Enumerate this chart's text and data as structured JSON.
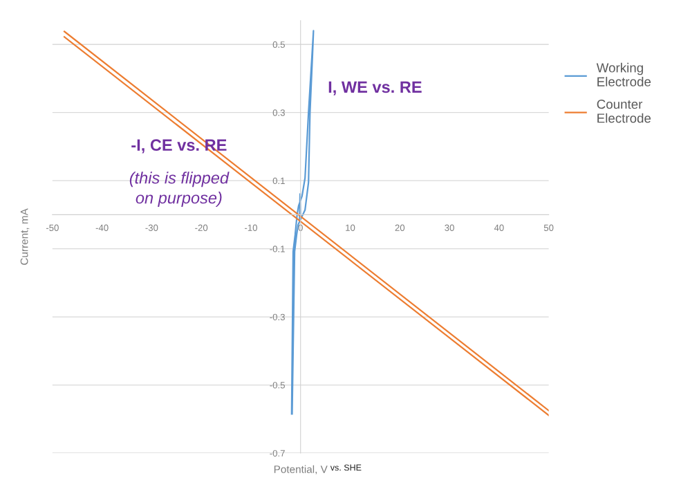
{
  "chart_data": {
    "type": "line",
    "xlabel": "Potential, V",
    "ylabel": "Current, mA",
    "xlim": [
      -50,
      50
    ],
    "xticks": [
      -50,
      -40,
      -30,
      -20,
      -10,
      0,
      10,
      20,
      30,
      40,
      50
    ],
    "ylim": [
      -0.7,
      0.57
    ],
    "yticks": [
      -0.7,
      -0.5,
      -0.3,
      -0.1,
      0.1,
      0.3,
      0.5
    ],
    "grid": "y",
    "legend": "right",
    "marker": "none",
    "line_style": "solid",
    "series": [
      {
        "name": "Working\nElectrode",
        "color": "#5b9bd5",
        "x": [
          -1.7,
          -1.2,
          -0.8,
          -0.5,
          -0.2,
          -0.1,
          0,
          0.9,
          1.6,
          1.9,
          2.4,
          2.6,
          2.3,
          1.6,
          0.9,
          0.3,
          -0.4,
          -0.7,
          -1.1,
          -1.5,
          -1.8
        ],
        "values": [
          -0.585,
          -0.108,
          -0.06,
          -0.03,
          -0.02,
          0.061,
          -0.014,
          0.014,
          0.095,
          0.3,
          0.467,
          0.54,
          0.467,
          0.3,
          0.108,
          0.055,
          0.026,
          0,
          -0.06,
          -0.108,
          -0.585
        ]
      },
      {
        "name": "Counter\nElectrode",
        "color": "#ed7d31",
        "x": [
          -47.6,
          50
        ],
        "values": [
          0.538,
          -0.575
        ]
      },
      {
        "color": "#ed7d31",
        "x": [
          -47.6,
          50
        ],
        "values": [
          0.522,
          -0.589
        ]
      }
    ],
    "annotations": [
      "I, WE vs. RE",
      "-I, CE vs. RE",
      "(this is flipped\non purpose)",
      "vs. SHE"
    ]
  }
}
